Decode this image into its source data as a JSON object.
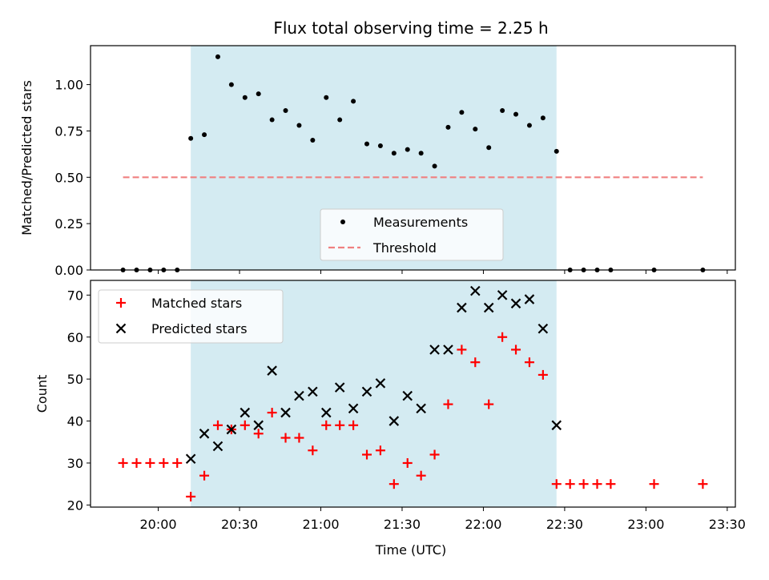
{
  "chart_data": {
    "title": "Flux total observing time = 2.25 h",
    "shaded_region": {
      "x_start": "20:12",
      "x_end": "22:27",
      "color": "#add8e6"
    },
    "x_axis": {
      "label": "Time (UTC)",
      "range": [
        "19:35",
        "23:33"
      ],
      "ticks": [
        "20:00",
        "20:30",
        "21:00",
        "21:30",
        "22:00",
        "22:30",
        "23:00",
        "23:30"
      ]
    },
    "panels": [
      {
        "type": "scatter",
        "ylabel": "Matched/Predicted stars",
        "ylim": [
          0,
          1.21
        ],
        "yticks": [
          "0.00",
          "0.25",
          "0.50",
          "0.75",
          "1.00"
        ],
        "series": [
          {
            "name": "Measurements",
            "color": "#000000",
            "marker": "dot",
            "points": [
              [
                "19:47",
                0
              ],
              [
                "19:52",
                0
              ],
              [
                "19:57",
                0
              ],
              [
                "20:02",
                0
              ],
              [
                "20:07",
                0
              ],
              [
                "20:12",
                0.71
              ],
              [
                "20:17",
                0.73
              ],
              [
                "20:22",
                1.15
              ],
              [
                "20:27",
                1.0
              ],
              [
                "20:32",
                0.93
              ],
              [
                "20:37",
                0.95
              ],
              [
                "20:42",
                0.81
              ],
              [
                "20:47",
                0.86
              ],
              [
                "20:52",
                0.78
              ],
              [
                "20:57",
                0.7
              ],
              [
                "21:02",
                0.93
              ],
              [
                "21:07",
                0.81
              ],
              [
                "21:12",
                0.91
              ],
              [
                "21:17",
                0.68
              ],
              [
                "21:22",
                0.67
              ],
              [
                "21:27",
                0.63
              ],
              [
                "21:32",
                0.65
              ],
              [
                "21:37",
                0.63
              ],
              [
                "21:42",
                0.56
              ],
              [
                "21:47",
                0.77
              ],
              [
                "21:52",
                0.85
              ],
              [
                "21:57",
                0.76
              ],
              [
                "22:02",
                0.66
              ],
              [
                "22:07",
                0.86
              ],
              [
                "22:12",
                0.84
              ],
              [
                "22:17",
                0.78
              ],
              [
                "22:22",
                0.82
              ],
              [
                "22:27",
                0.64
              ],
              [
                "22:32",
                0
              ],
              [
                "22:37",
                0
              ],
              [
                "22:42",
                0
              ],
              [
                "22:47",
                0
              ],
              [
                "23:03",
                0
              ],
              [
                "23:21",
                0
              ]
            ]
          },
          {
            "name": "Threshold",
            "color": "#f08080",
            "style": "dashed-line",
            "points": [
              [
                "19:47",
                0.5
              ],
              [
                "23:21",
                0.5
              ]
            ]
          }
        ],
        "legend": {
          "placement": "lower-center",
          "entries": [
            "Measurements",
            "Threshold"
          ]
        }
      },
      {
        "type": "scatter",
        "ylabel": "Count",
        "ylim": [
          19.5,
          73.5
        ],
        "yticks": [
          "20",
          "30",
          "40",
          "50",
          "60",
          "70"
        ],
        "series": [
          {
            "name": "Matched stars",
            "color": "#ff0000",
            "marker": "plus",
            "points": [
              [
                "19:47",
                30
              ],
              [
                "19:52",
                30
              ],
              [
                "19:57",
                30
              ],
              [
                "20:02",
                30
              ],
              [
                "20:07",
                30
              ],
              [
                "20:12",
                22
              ],
              [
                "20:17",
                27
              ],
              [
                "20:22",
                39
              ],
              [
                "20:27",
                38
              ],
              [
                "20:32",
                39
              ],
              [
                "20:37",
                37
              ],
              [
                "20:42",
                42
              ],
              [
                "20:47",
                36
              ],
              [
                "20:52",
                36
              ],
              [
                "20:57",
                33
              ],
              [
                "21:02",
                39
              ],
              [
                "21:07",
                39
              ],
              [
                "21:12",
                39
              ],
              [
                "21:17",
                32
              ],
              [
                "21:22",
                33
              ],
              [
                "21:27",
                25
              ],
              [
                "21:32",
                30
              ],
              [
                "21:37",
                27
              ],
              [
                "21:42",
                32
              ],
              [
                "21:47",
                44
              ],
              [
                "21:52",
                57
              ],
              [
                "21:57",
                54
              ],
              [
                "22:02",
                44
              ],
              [
                "22:07",
                60
              ],
              [
                "22:12",
                57
              ],
              [
                "22:17",
                54
              ],
              [
                "22:22",
                51
              ],
              [
                "22:27",
                25
              ],
              [
                "22:32",
                25
              ],
              [
                "22:37",
                25
              ],
              [
                "22:42",
                25
              ],
              [
                "22:47",
                25
              ],
              [
                "23:03",
                25
              ],
              [
                "23:21",
                25
              ]
            ]
          },
          {
            "name": "Predicted stars",
            "color": "#000000",
            "marker": "x",
            "points": [
              [
                "20:12",
                31
              ],
              [
                "20:17",
                37
              ],
              [
                "20:22",
                34
              ],
              [
                "20:27",
                38
              ],
              [
                "20:32",
                42
              ],
              [
                "20:37",
                39
              ],
              [
                "20:42",
                52
              ],
              [
                "20:47",
                42
              ],
              [
                "20:52",
                46
              ],
              [
                "20:57",
                47
              ],
              [
                "21:02",
                42
              ],
              [
                "21:07",
                48
              ],
              [
                "21:12",
                43
              ],
              [
                "21:17",
                47
              ],
              [
                "21:22",
                49
              ],
              [
                "21:27",
                40
              ],
              [
                "21:32",
                46
              ],
              [
                "21:37",
                43
              ],
              [
                "21:42",
                57
              ],
              [
                "21:47",
                57
              ],
              [
                "21:52",
                67
              ],
              [
                "21:57",
                71
              ],
              [
                "22:02",
                67
              ],
              [
                "22:07",
                70
              ],
              [
                "22:12",
                68
              ],
              [
                "22:17",
                69
              ],
              [
                "22:22",
                62
              ],
              [
                "22:27",
                39
              ]
            ]
          }
        ],
        "legend": {
          "placement": "top-left",
          "entries": [
            "Matched stars",
            "Predicted stars"
          ]
        }
      }
    ]
  }
}
